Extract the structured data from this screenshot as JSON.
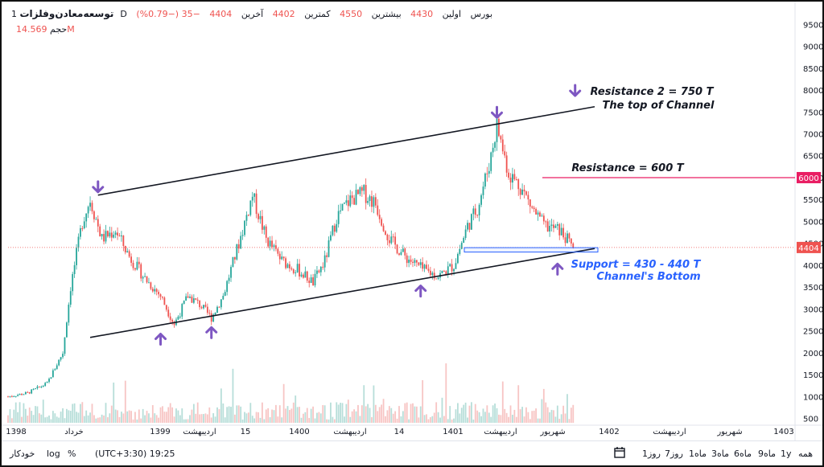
{
  "legend": {
    "symbol": "توسعه‌معادن‌وفلزات",
    "interval": "1D",
    "exchange": "بورس",
    "open_label": "اولین",
    "open_value": "4430",
    "high_label": "بیشترین",
    "high_value": "4550",
    "low_label": "کمترین",
    "low_value": "4402",
    "close_label": "آخرین",
    "close_value": "4404",
    "change": "−35 (−0.79%)",
    "volume_label": "حجم",
    "volume_value": "14.569M"
  },
  "chart_data": {
    "type": "candlestick",
    "y_ticks": [
      500,
      1000,
      1500,
      2000,
      2500,
      3000,
      3500,
      4000,
      4500,
      5000,
      5500,
      6000,
      6500,
      7000,
      7500,
      8000,
      8500,
      9000,
      9500
    ],
    "ylim": [
      400,
      9800
    ],
    "x_ticks": [
      "1398",
      "خرداد",
      "1399",
      "اردیبهشت",
      "15",
      "1400",
      "اردیبهشت",
      "14",
      "1401",
      "اردیبهشت",
      "شهریور",
      "1402",
      "اردیبهشت",
      "شهریور",
      "1403"
    ],
    "price_path": [
      [
        0,
        1000
      ],
      [
        10,
        1080
      ],
      [
        20,
        1300
      ],
      [
        28,
        2000
      ],
      [
        32,
        3500
      ],
      [
        38,
        5000
      ],
      [
        42,
        5500
      ],
      [
        48,
        4600
      ],
      [
        55,
        4800
      ],
      [
        62,
        4200
      ],
      [
        70,
        3700
      ],
      [
        78,
        3300
      ],
      [
        85,
        2650
      ],
      [
        92,
        3300
      ],
      [
        98,
        3100
      ],
      [
        104,
        2800
      ],
      [
        110,
        3300
      ],
      [
        118,
        4500
      ],
      [
        125,
        5600
      ],
      [
        132,
        4600
      ],
      [
        140,
        4100
      ],
      [
        148,
        3900
      ],
      [
        156,
        3600
      ],
      [
        162,
        4100
      ],
      [
        168,
        5100
      ],
      [
        175,
        5500
      ],
      [
        182,
        5650
      ],
      [
        188,
        5400
      ],
      [
        195,
        4600
      ],
      [
        203,
        4200
      ],
      [
        212,
        3900
      ],
      [
        220,
        3750
      ],
      [
        228,
        4000
      ],
      [
        235,
        4900
      ],
      [
        240,
        5300
      ],
      [
        246,
        6300
      ],
      [
        250,
        7200
      ],
      [
        256,
        6100
      ],
      [
        262,
        5800
      ],
      [
        268,
        5300
      ],
      [
        274,
        4900
      ],
      [
        282,
        4800
      ],
      [
        289,
        4404
      ]
    ],
    "annotations": [
      {
        "text": "Resistance 2 = 750 T",
        "color": "#131722"
      },
      {
        "text": "The top of Channel",
        "color": "#131722"
      },
      {
        "text": "Resistance = 600 T",
        "color": "#131722"
      },
      {
        "text": "Support = 430 - 440 T",
        "color": "#2962ff"
      },
      {
        "text": "Channel's Bottom",
        "color": "#2962ff"
      }
    ],
    "resistance_level": 6000,
    "resistance_label": "6000",
    "last_price": 4404,
    "last_price_label": "4404",
    "channel": {
      "upper": [
        [
          46,
          5600
        ],
        [
          300,
          7620
        ]
      ],
      "lower": [
        [
          42,
          2350
        ],
        [
          300,
          4380
        ]
      ]
    },
    "support_zone": [
      4300,
      4400
    ],
    "arrows_down": [
      [
        46,
        5800
      ],
      [
        250,
        7500
      ],
      [
        290,
        8000
      ]
    ],
    "arrows_up": [
      [
        78,
        2300
      ],
      [
        104,
        2450
      ],
      [
        211,
        3400
      ],
      [
        281,
        3900
      ]
    ],
    "colors": {
      "up": "#26a69a",
      "down": "#ef5350",
      "resistance": "#e91e63",
      "support": "#2962ff",
      "arrow": "#7e57c2"
    }
  },
  "toolbar": {
    "ranges": [
      "همه",
      "1y",
      "9ماه",
      "6ماه",
      "3ماه",
      "1ماه",
      "7روز",
      "1روز"
    ],
    "timezone": "(UTC+3:30) 19:25",
    "percent": "%",
    "log": "log",
    "auto": "خودکار",
    "icon_calendar": "calendar-icon",
    "icon_settings": "gear-icon"
  }
}
